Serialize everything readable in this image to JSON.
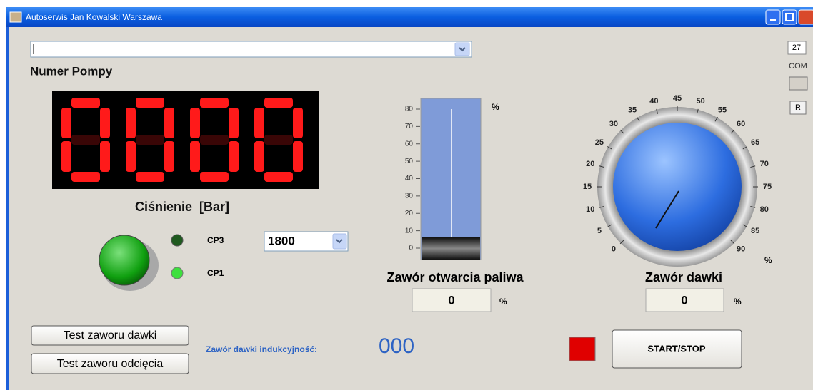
{
  "window": {
    "title": "Autoserwis Jan Kowalski Warszawa"
  },
  "side": {
    "port": "27",
    "com_label": "COM",
    "reset": "R"
  },
  "pump": {
    "label": "Numer Pompy",
    "display": "0000",
    "pressure_label": "Ciśnienie  [Bar]"
  },
  "indicators": [
    "CP3",
    "CP1"
  ],
  "speed_select": "1800",
  "fuel_valve": {
    "ticks": [
      "80",
      "70",
      "60",
      "50",
      "40",
      "30",
      "20",
      "10",
      "0"
    ],
    "unit": "%",
    "label": "Zawór otwarcia paliwa",
    "value": "0",
    "value_unit": "%"
  },
  "dose_valve": {
    "ticks": [
      "0",
      "5",
      "10",
      "15",
      "20",
      "25",
      "30",
      "35",
      "40",
      "45",
      "50",
      "55",
      "60",
      "65",
      "70",
      "75",
      "80",
      "85",
      "90"
    ],
    "unit": "%",
    "label": "Zawór dawki",
    "value": "0",
    "value_unit": "%"
  },
  "buttons": {
    "test_dose": "Test zaworu dawki",
    "test_cutoff": "Test zaworu odcięcia",
    "start_stop": "START/STOP"
  },
  "inductance": {
    "label": "Zawór dawki indukcyjność:",
    "value": "000"
  }
}
